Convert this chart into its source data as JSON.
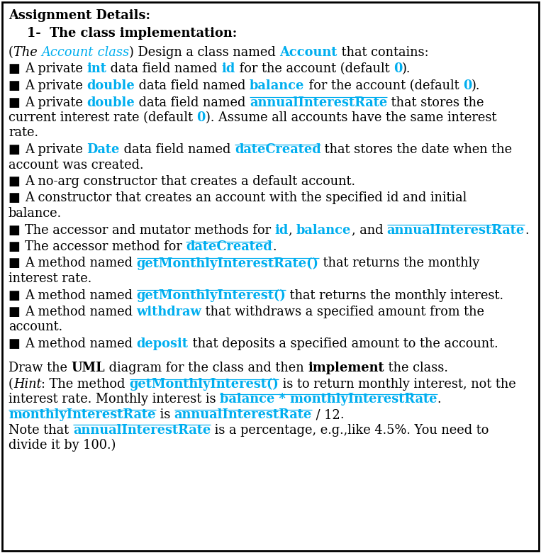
{
  "bg_color": "#ffffff",
  "border_color": "#000000",
  "cyan": "#00AEEF",
  "black": "#000000"
}
